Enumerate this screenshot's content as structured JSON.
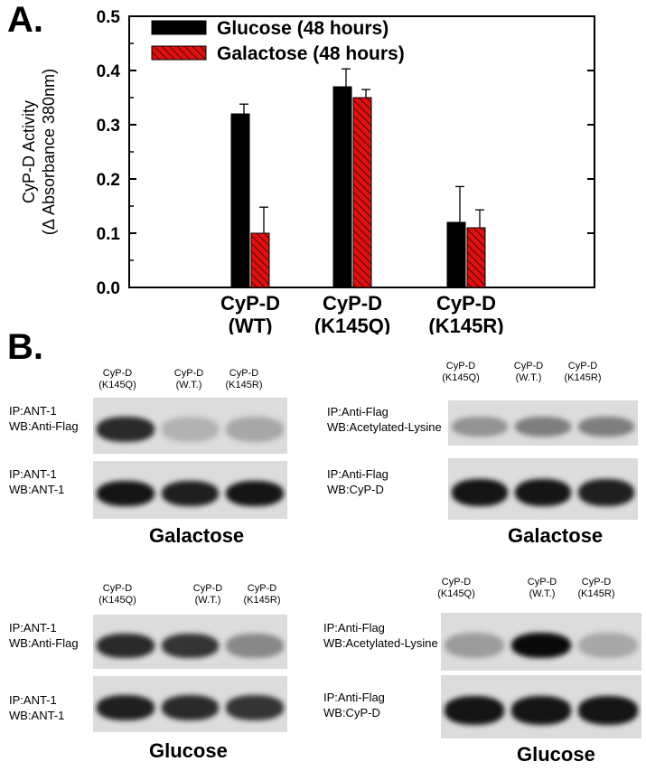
{
  "panelA": {
    "label": "A.",
    "chart_data": {
      "type": "bar",
      "categories": [
        "CyP-D\n(WT)",
        "CyP-D\n(K145Q)",
        "CyP-D\n(K145R)"
      ],
      "series": [
        {
          "name": "Glucose (48 hours)",
          "values": [
            0.32,
            0.37,
            0.12
          ],
          "errors": [
            0.018,
            0.033,
            0.066
          ],
          "color": "#000000"
        },
        {
          "name": "Galactose (48 hours)",
          "values": [
            0.1,
            0.35,
            0.11
          ],
          "errors": [
            0.048,
            0.015,
            0.033
          ],
          "color": "#e01010"
        }
      ],
      "ylabel_line1": "CyP-D Activity",
      "ylabel_line2": "(Δ Absorbance 380nm)",
      "ylim": [
        0,
        0.5
      ],
      "yticks": [
        "0.0",
        "0.1",
        "0.2",
        "0.3",
        "0.4",
        "0.5"
      ],
      "legend_position": "top-left",
      "grid": false
    }
  },
  "panelB": {
    "label": "B.",
    "blots": [
      {
        "columns": [
          "CyP-D\n(K145Q)",
          "CyP-D\n(W.T.)",
          "CyP-D\n(K145R)"
        ],
        "rows": [
          {
            "label": "IP:ANT-1\nWB:Anti-Flag",
            "intensities": [
              0.85,
              0.2,
              0.25
            ]
          },
          {
            "label": "IP:ANT-1\nWB:ANT-1",
            "intensities": [
              0.95,
              0.9,
              0.95
            ]
          }
        ],
        "condition": "Galactose"
      },
      {
        "columns": [
          "CyP-D\n(K145Q)",
          "CyP-D\n(W.T.)",
          "CyP-D\n(K145R)"
        ],
        "rows": [
          {
            "label": "IP:Anti-Flag\nWB:Acetylated-Lysine",
            "intensities": [
              0.35,
              0.45,
              0.45
            ]
          },
          {
            "label": "IP:Anti-Flag\nWB:CyP-D",
            "intensities": [
              0.95,
              0.95,
              0.9
            ]
          }
        ],
        "condition": "Galactose"
      },
      {
        "columns": [
          "CyP-D\n(K145Q)",
          "CyP-D\n(W.T.)",
          "CyP-D\n(K145R)"
        ],
        "rows": [
          {
            "label": "IP:ANT-1\nWB:Anti-Flag",
            "intensities": [
              0.85,
              0.8,
              0.4
            ]
          },
          {
            "label": "IP:ANT-1\nWB:ANT-1",
            "intensities": [
              0.9,
              0.85,
              0.8
            ]
          }
        ],
        "condition": "Glucose"
      },
      {
        "columns": [
          "CyP-D\n(K145Q)",
          "CyP-D\n(W.T.)",
          "CyP-D\n(K145R)"
        ],
        "rows": [
          {
            "label": "IP:Anti-Flag\nWB:Acetylated-Lysine",
            "intensities": [
              0.3,
              1.0,
              0.25
            ]
          },
          {
            "label": "IP:Anti-Flag\nWB:CyP-D",
            "intensities": [
              0.95,
              0.95,
              0.95
            ]
          }
        ],
        "condition": "Glucose"
      }
    ]
  }
}
